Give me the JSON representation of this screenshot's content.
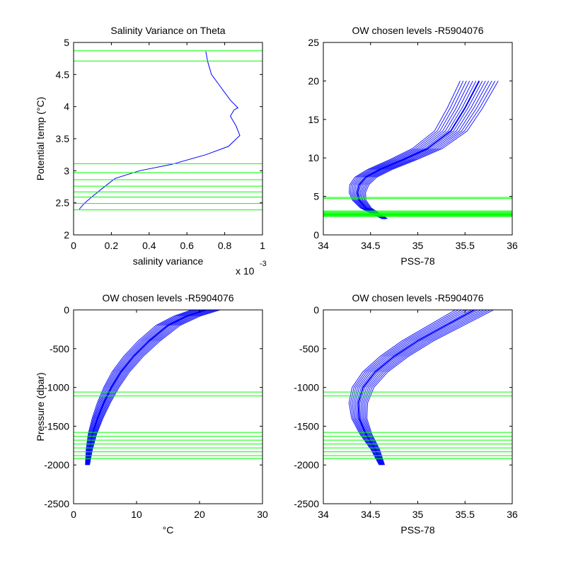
{
  "chart_data": [
    {
      "type": "line",
      "title": "Salinity Variance on Theta",
      "xlabel": "salinity variance",
      "ylabel": "Potential temp (°C)",
      "x_exponent_label": "x 10",
      "x_exponent_power": "-3",
      "xlim": [
        0,
        1
      ],
      "ylim": [
        2,
        5
      ],
      "xticks": [
        0,
        0.2,
        0.4,
        0.6,
        0.8,
        1
      ],
      "xtick_labels": [
        "0",
        "0.2",
        "0.4",
        "0.6",
        "0.8",
        "1"
      ],
      "yticks": [
        2,
        2.5,
        3,
        3.5,
        4,
        4.5,
        5
      ],
      "ytick_labels": [
        "2",
        "2.5",
        "3",
        "3.5",
        "4",
        "4.5",
        "5"
      ],
      "series": [
        {
          "color": "#0000ff",
          "x": [
            0.03,
            0.06,
            0.1,
            0.15,
            0.22,
            0.35,
            0.52,
            0.7,
            0.82,
            0.88,
            0.86,
            0.83,
            0.85,
            0.87,
            0.83,
            0.78,
            0.73,
            0.71,
            0.7
          ],
          "y": [
            2.4,
            2.5,
            2.6,
            2.72,
            2.88,
            3.0,
            3.1,
            3.25,
            3.38,
            3.55,
            3.7,
            3.85,
            3.95,
            3.98,
            4.1,
            4.3,
            4.5,
            4.7,
            4.86
          ]
        }
      ],
      "hlines": {
        "color": "#00ff00",
        "y": [
          4.87,
          4.71,
          3.11,
          2.97,
          2.86,
          2.76,
          2.67,
          2.59,
          2.49,
          2.39
        ]
      }
    },
    {
      "type": "line",
      "title": "OW chosen levels -R5904076",
      "xlabel": "PSS-78",
      "ylabel": "",
      "xlim": [
        34,
        36
      ],
      "ylim": [
        0,
        25
      ],
      "xticks": [
        34,
        34.5,
        35,
        35.5,
        36
      ],
      "xtick_labels": [
        "34",
        "34.5",
        "35",
        "35.5",
        "36"
      ],
      "yticks": [
        0,
        5,
        10,
        15,
        20,
        25
      ],
      "ytick_labels": [
        "0",
        "5",
        "10",
        "15",
        "20",
        "25"
      ],
      "series": [
        {
          "color": "#0000ff",
          "x": [
            34.65,
            34.55,
            34.45,
            34.38,
            34.36,
            34.38,
            34.45,
            34.6,
            34.85,
            35.1,
            35.35,
            35.5,
            35.65
          ],
          "y": [
            2.1,
            2.8,
            3.5,
            4.5,
            5.5,
            6.5,
            7.5,
            8.5,
            9.8,
            11.2,
            13.5,
            16.5,
            20.0
          ]
        }
      ],
      "hlines": {
        "color": "#00ff00",
        "y": [
          4.87,
          4.71,
          3.11,
          2.97,
          2.86,
          2.76,
          2.67,
          2.59,
          2.49,
          2.39
        ]
      }
    },
    {
      "type": "line",
      "title": "OW chosen levels -R5904076",
      "xlabel": "°C",
      "ylabel": "Pressure (dbar)",
      "xlim": [
        0,
        30
      ],
      "ylim": [
        -2500,
        0
      ],
      "xticks": [
        0,
        10,
        20,
        30
      ],
      "xtick_labels": [
        "0",
        "10",
        "20",
        "30"
      ],
      "yticks": [
        -2500,
        -2000,
        -1500,
        -1000,
        -500,
        0
      ],
      "ytick_labels": [
        "-2500",
        "-2000",
        "-1500",
        "-1000",
        "-500",
        "0"
      ],
      "series": [
        {
          "color": "#0000ff",
          "x": [
            2.2,
            2.5,
            3.0,
            3.8,
            4.8,
            6.0,
            7.5,
            9.5,
            12.0,
            15.0,
            18.0,
            21.0
          ],
          "y": [
            -2000,
            -1800,
            -1600,
            -1400,
            -1200,
            -1000,
            -800,
            -600,
            -400,
            -200,
            -80,
            0
          ]
        }
      ],
      "hlines": {
        "color": "#00ff00",
        "y": [
          -1060,
          -1110,
          -1580,
          -1630,
          -1680,
          -1730,
          -1780,
          -1830,
          -1880,
          -1920
        ]
      }
    },
    {
      "type": "line",
      "title": "OW chosen levels -R5904076",
      "xlabel": "PSS-78",
      "ylabel": "",
      "xlim": [
        34,
        36
      ],
      "ylim": [
        -2500,
        0
      ],
      "xticks": [
        34,
        34.5,
        35,
        35.5,
        36
      ],
      "xtick_labels": [
        "34",
        "34.5",
        "35",
        "35.5",
        "36"
      ],
      "yticks": [
        -2500,
        -2000,
        -1500,
        -1000,
        -500,
        0
      ],
      "ytick_labels": [
        "-2500",
        "-2000",
        "-1500",
        "-1000",
        "-500",
        "0"
      ],
      "series": [
        {
          "color": "#0000ff",
          "x": [
            34.62,
            34.55,
            34.45,
            34.38,
            34.37,
            34.42,
            34.55,
            34.75,
            35.0,
            35.3,
            35.6
          ],
          "y": [
            -2000,
            -1800,
            -1600,
            -1400,
            -1200,
            -1000,
            -800,
            -600,
            -400,
            -200,
            0
          ]
        }
      ],
      "hlines": {
        "color": "#00ff00",
        "y": [
          -1060,
          -1110,
          -1580,
          -1630,
          -1680,
          -1730,
          -1780,
          -1830,
          -1880,
          -1920
        ]
      }
    }
  ]
}
